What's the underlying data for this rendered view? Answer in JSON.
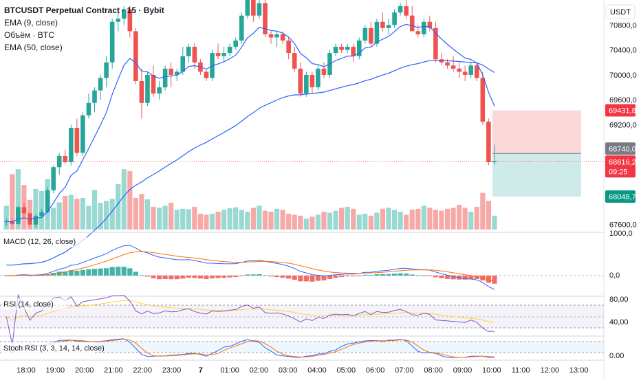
{
  "header": {
    "title": "BTCUSDT Perpetual Contract · 15 · Bybit",
    "legend_lines": [
      "EMA (9, close)",
      "Объём · BTC",
      "EMA (50, close)"
    ]
  },
  "currency_label": "USDT",
  "colors": {
    "up": "#26a69a",
    "down": "#ef5350",
    "up_vol": "#9ad8d2",
    "down_vol": "#f7a9a7",
    "ema9": "#2962ff",
    "ema50": "#2962ff",
    "macd_line": "#2962ff",
    "signal_line": "#ff6d00",
    "rsi": "#7e57c2",
    "rsi_ma": "#fdd835",
    "stoch_k": "#2962ff",
    "stoch_d": "#ff6d00"
  },
  "chart_data": [
    {
      "type": "candlestick",
      "title": "BTCUSDT Perpetual Contract · 15 · Bybit",
      "y_axis_ticks": [
        "70800,0",
        "70400,0",
        "70000,0",
        "69600,0",
        "69200,0",
        "67600,0"
      ],
      "y_range": [
        67520,
        71200
      ],
      "x_tick_labels": [
        "18:00",
        "19:00",
        "20:00",
        "21:00",
        "22:00",
        "23:00",
        "7",
        "01:00",
        "02:00",
        "03:00",
        "04:00",
        "05:00",
        "06:00",
        "07:00",
        "08:00",
        "09:00",
        "10:00",
        "11:00",
        "12:00",
        "13:00"
      ],
      "ohlc": [
        [
          67640,
          67700,
          67580,
          67650
        ],
        [
          67650,
          67700,
          67580,
          67610
        ],
        [
          67610,
          67900,
          67580,
          67880
        ],
        [
          67880,
          67950,
          67700,
          67780
        ],
        [
          67780,
          67800,
          67560,
          67600
        ],
        [
          67600,
          67760,
          67550,
          67740
        ],
        [
          67740,
          67850,
          67700,
          67800
        ],
        [
          67800,
          68200,
          67780,
          68150
        ],
        [
          68150,
          68550,
          68100,
          68520
        ],
        [
          68520,
          68750,
          68400,
          68700
        ],
        [
          68700,
          68800,
          68580,
          68600
        ],
        [
          68600,
          69200,
          68550,
          69150
        ],
        [
          69150,
          69300,
          68700,
          68750
        ],
        [
          68750,
          69400,
          68700,
          69350
        ],
        [
          69350,
          69700,
          69300,
          69550
        ],
        [
          69550,
          69800,
          69400,
          69750
        ],
        [
          69750,
          70000,
          69600,
          69950
        ],
        [
          69950,
          70300,
          69800,
          70200
        ],
        [
          70200,
          70900,
          70100,
          70850
        ],
        [
          70850,
          71000,
          70700,
          70900
        ],
        [
          70900,
          71100,
          70800,
          71050
        ],
        [
          71050,
          71100,
          70600,
          70700
        ],
        [
          70700,
          70750,
          69850,
          69900
        ],
        [
          69900,
          70100,
          69300,
          69550
        ],
        [
          69550,
          70050,
          69500,
          70000
        ],
        [
          70000,
          70150,
          69650,
          69700
        ],
        [
          69700,
          69900,
          69600,
          69800
        ],
        [
          69800,
          70150,
          69750,
          70100
        ],
        [
          70100,
          70200,
          69800,
          70000
        ],
        [
          70000,
          70100,
          69900,
          70050
        ],
        [
          70050,
          70450,
          70000,
          70300
        ],
        [
          70300,
          70500,
          70200,
          70450
        ],
        [
          70450,
          70500,
          70100,
          70200
        ],
        [
          70200,
          70250,
          70000,
          70050
        ],
        [
          70050,
          70100,
          69900,
          69950
        ],
        [
          69950,
          70400,
          69900,
          70350
        ],
        [
          70350,
          70500,
          70250,
          70300
        ],
        [
          70300,
          70450,
          70200,
          70350
        ],
        [
          70350,
          70500,
          70300,
          70450
        ],
        [
          70450,
          70600,
          70400,
          70550
        ],
        [
          70550,
          71000,
          70500,
          70950
        ],
        [
          70950,
          71250,
          70900,
          71200
        ],
        [
          71200,
          71250,
          70850,
          70950
        ],
        [
          70950,
          71200,
          70900,
          71150
        ],
        [
          71150,
          71250,
          70600,
          70650
        ],
        [
          70650,
          70700,
          70500,
          70600
        ],
        [
          70600,
          70700,
          70450,
          70650
        ],
        [
          70650,
          70700,
          70500,
          70550
        ],
        [
          70550,
          70600,
          70250,
          70350
        ],
        [
          70350,
          70450,
          70050,
          70100
        ],
        [
          70100,
          70200,
          69650,
          69700
        ],
        [
          69700,
          70050,
          69650,
          70000
        ],
        [
          70000,
          70050,
          69700,
          69800
        ],
        [
          69800,
          70150,
          69750,
          70100
        ],
        [
          70100,
          70200,
          69950,
          70000
        ],
        [
          70000,
          70400,
          69950,
          70350
        ],
        [
          70350,
          70500,
          70300,
          70450
        ],
        [
          70450,
          70500,
          70350,
          70400
        ],
        [
          70400,
          70500,
          70350,
          70450
        ],
        [
          70450,
          70500,
          70200,
          70300
        ],
        [
          70300,
          70600,
          70250,
          70550
        ],
        [
          70550,
          70800,
          70500,
          70750
        ],
        [
          70750,
          70850,
          70450,
          70500
        ],
        [
          70500,
          70900,
          70450,
          70850
        ],
        [
          70850,
          71000,
          70700,
          70750
        ],
        [
          70750,
          70900,
          70650,
          70800
        ],
        [
          70800,
          71050,
          70750,
          71000
        ],
        [
          71000,
          71150,
          70950,
          71100
        ],
        [
          71100,
          71200,
          70900,
          70950
        ],
        [
          70950,
          71100,
          70700,
          70700
        ],
        [
          70700,
          70800,
          70600,
          70650
        ],
        [
          70650,
          70900,
          70600,
          70850
        ],
        [
          70850,
          70950,
          70700,
          70750
        ],
        [
          70750,
          70850,
          70200,
          70250
        ],
        [
          70250,
          70350,
          70150,
          70200
        ],
        [
          70200,
          70250,
          70100,
          70150
        ],
        [
          70150,
          70300,
          70050,
          70100
        ],
        [
          70100,
          70200,
          69950,
          70050
        ],
        [
          70050,
          70150,
          69900,
          70000
        ],
        [
          70000,
          70200,
          69950,
          70150
        ],
        [
          70150,
          70200,
          69900,
          69950
        ],
        [
          69950,
          70050,
          69200,
          69250
        ],
        [
          69250,
          69300,
          68550,
          68600
        ],
        [
          68600,
          68880,
          68560,
          68616
        ]
      ],
      "volumes": [
        48,
        112,
        122,
        90,
        60,
        82,
        78,
        102,
        44,
        55,
        68,
        70,
        62,
        64,
        48,
        80,
        54,
        58,
        62,
        92,
        122,
        118,
        64,
        72,
        61,
        46,
        44,
        48,
        54,
        40,
        42,
        41,
        46,
        32,
        30,
        32,
        36,
        40,
        43,
        45,
        40,
        36,
        44,
        48,
        38,
        36,
        42,
        40,
        32,
        30,
        28,
        22,
        26,
        30,
        36,
        34,
        38,
        44,
        46,
        42,
        30,
        32,
        28,
        34,
        42,
        44,
        40,
        36,
        30,
        40,
        42,
        48,
        44,
        40,
        38,
        42,
        44,
        50,
        44,
        36,
        46,
        74,
        58,
        28
      ],
      "ema9_label": "EMA (9, close)",
      "ema50_label": "EMA (50, close)",
      "last_price_label": "68616,2",
      "countdown_label": "09:25",
      "position_tool": {
        "stop_label": "69431,8",
        "entry_label": "68740,0",
        "target_label": "68048,7",
        "stop": 69431.8,
        "entry": 68740.0,
        "target": 68048.7
      }
    },
    {
      "type": "line",
      "title": "MACD (12, 26, close)",
      "y_axis_ticks": [
        "1000,0",
        "0,0"
      ],
      "series": [
        "MACD line",
        "Signal line",
        "Histogram"
      ]
    },
    {
      "type": "line",
      "title": "RSI (14, close)",
      "y_axis_ticks": [
        "80,00",
        "40,00"
      ],
      "levels": [
        70,
        50,
        30
      ]
    },
    {
      "type": "line",
      "title": "Stoch RSI (3, 3, 14, 14, close)",
      "y_axis_ticks": [
        "0.00"
      ],
      "levels": [
        80,
        20
      ]
    }
  ]
}
